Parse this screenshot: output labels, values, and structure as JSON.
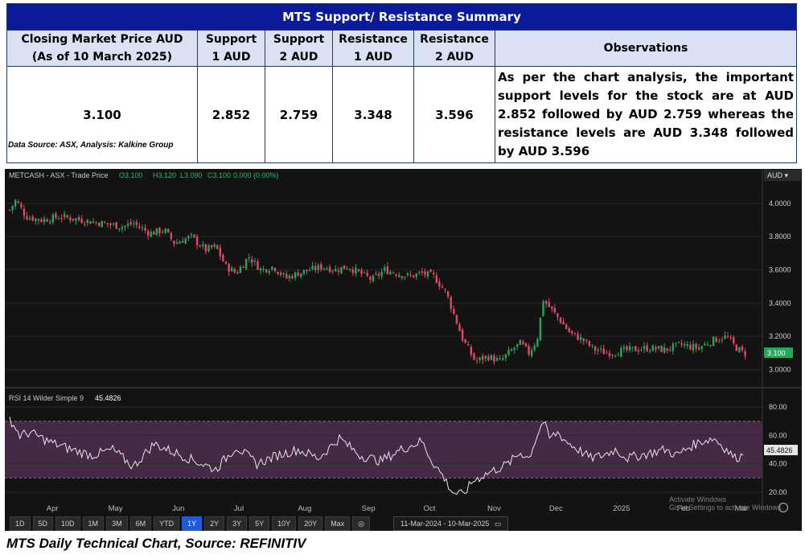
{
  "summary": {
    "title": "MTS Support/  Resistance Summary",
    "headers": {
      "closing": "Closing Market Price AUD (As of 10 March 2025)",
      "support1": "Support 1 AUD",
      "support2": "Support 2 AUD",
      "resistance1": "Resistance 1 AUD",
      "resistance2": "Resistance 2 AUD",
      "observations": "Observations"
    },
    "values": {
      "closing": "3.100",
      "support1": "2.852",
      "support2": "2.759",
      "resistance1": "3.348",
      "resistance2": "3.596",
      "observations": "As per the chart analysis, the important support levels for the stock are at AUD 2.852 followed by AUD 2.759 whereas the resistance levels are AUD 3.348 followed by AUD 3.596"
    },
    "source": "Data Source: ASX, Analysis: Kalkine Group"
  },
  "chart_header": {
    "instrument": "METCASH - ASX - Trade Price",
    "o": "O3.100",
    "h": "H3.120",
    "l": "L3.090",
    "c": "C3.100",
    "chg": "0.000 (0.00%)"
  },
  "currency_label": "AUD",
  "last_price_tag": "3.100",
  "rsi_header": {
    "label": "RSI 14 Wilder Simple 9",
    "value": "45.4826"
  },
  "rsi_tag": "45.4826",
  "range_buttons": [
    "1D",
    "5D",
    "10D",
    "1M",
    "3M",
    "6M",
    "YTD",
    "1Y",
    "2Y",
    "3Y",
    "5Y",
    "10Y",
    "20Y",
    "Max"
  ],
  "active_range": "1Y",
  "date_range": "11-Mar-2024  -  10-Mar-2025",
  "watermark": {
    "line1": "Activate Windows",
    "line2": "Go to Settings to activate Windows."
  },
  "caption": "MTS Daily Technical Chart, Source: REFINITIV",
  "colors": {
    "up": "#26a65b",
    "down": "#e04a6a",
    "rsi_band": "#5a3a5a",
    "title_bg": "#0a1a99"
  },
  "chart_data": [
    {
      "type": "candlestick",
      "title": "METCASH - ASX - Trade Price",
      "yticks": [
        3.0,
        3.2,
        3.4,
        3.6,
        3.8,
        4.0
      ],
      "ylim": [
        2.94,
        4.12
      ],
      "x_tick_labels": [
        "Apr",
        "May",
        "Jun",
        "Jul",
        "Aug",
        "Sep",
        "Oct",
        "Nov",
        "Dec",
        "2025",
        "Feb",
        "Mar"
      ],
      "anchor_closes": [
        [
          0,
          3.96
        ],
        [
          3,
          4.02
        ],
        [
          8,
          3.92
        ],
        [
          15,
          3.9
        ],
        [
          25,
          3.92
        ],
        [
          35,
          3.9
        ],
        [
          45,
          3.88
        ],
        [
          55,
          3.86
        ],
        [
          60,
          3.88
        ],
        [
          68,
          3.82
        ],
        [
          75,
          3.84
        ],
        [
          80,
          3.76
        ],
        [
          88,
          3.8
        ],
        [
          95,
          3.72
        ],
        [
          100,
          3.74
        ],
        [
          105,
          3.62
        ],
        [
          110,
          3.58
        ],
        [
          116,
          3.68
        ],
        [
          122,
          3.6
        ],
        [
          128,
          3.62
        ],
        [
          134,
          3.55
        ],
        [
          140,
          3.58
        ],
        [
          146,
          3.6
        ],
        [
          152,
          3.62
        ],
        [
          158,
          3.6
        ],
        [
          164,
          3.62
        ],
        [
          170,
          3.58
        ],
        [
          176,
          3.54
        ],
        [
          182,
          3.6
        ],
        [
          188,
          3.58
        ],
        [
          194,
          3.56
        ],
        [
          200,
          3.58
        ],
        [
          206,
          3.56
        ],
        [
          212,
          3.46
        ],
        [
          216,
          3.32
        ],
        [
          220,
          3.18
        ],
        [
          226,
          3.05
        ],
        [
          232,
          3.08
        ],
        [
          238,
          3.05
        ],
        [
          244,
          3.12
        ],
        [
          248,
          3.16
        ],
        [
          252,
          3.1
        ],
        [
          256,
          3.18
        ],
        [
          259,
          3.42
        ],
        [
          263,
          3.36
        ],
        [
          267,
          3.3
        ],
        [
          272,
          3.22
        ],
        [
          278,
          3.18
        ],
        [
          284,
          3.12
        ],
        [
          290,
          3.1
        ],
        [
          296,
          3.11
        ],
        [
          302,
          3.12
        ],
        [
          310,
          3.13
        ],
        [
          318,
          3.12
        ],
        [
          326,
          3.15
        ],
        [
          334,
          3.13
        ],
        [
          342,
          3.18
        ],
        [
          348,
          3.2
        ],
        [
          352,
          3.14
        ],
        [
          356,
          3.1
        ]
      ]
    },
    {
      "type": "line",
      "title": "RSI 14 Wilder Simple 9",
      "yticks": [
        20,
        40,
        60,
        80
      ],
      "ylim": [
        12,
        88
      ],
      "last_value": 45.4826,
      "x": [
        0,
        5,
        10,
        20,
        30,
        40,
        50,
        60,
        70,
        80,
        90,
        100,
        110,
        120,
        130,
        140,
        150,
        160,
        170,
        180,
        190,
        200,
        205,
        210,
        215,
        220,
        225,
        230,
        236,
        242,
        248,
        252,
        256,
        259,
        262,
        266,
        270,
        276,
        282,
        288,
        294,
        300,
        306,
        312,
        318,
        324,
        330,
        336,
        342,
        348,
        352,
        356
      ],
      "values": [
        72,
        60,
        62,
        55,
        50,
        46,
        50,
        38,
        54,
        48,
        42,
        36,
        52,
        40,
        46,
        50,
        44,
        58,
        46,
        42,
        50,
        56,
        42,
        32,
        20,
        18,
        28,
        32,
        36,
        40,
        48,
        44,
        60,
        70,
        58,
        62,
        56,
        50,
        44,
        46,
        50,
        44,
        46,
        48,
        50,
        46,
        52,
        56,
        58,
        50,
        44,
        46
      ]
    }
  ]
}
